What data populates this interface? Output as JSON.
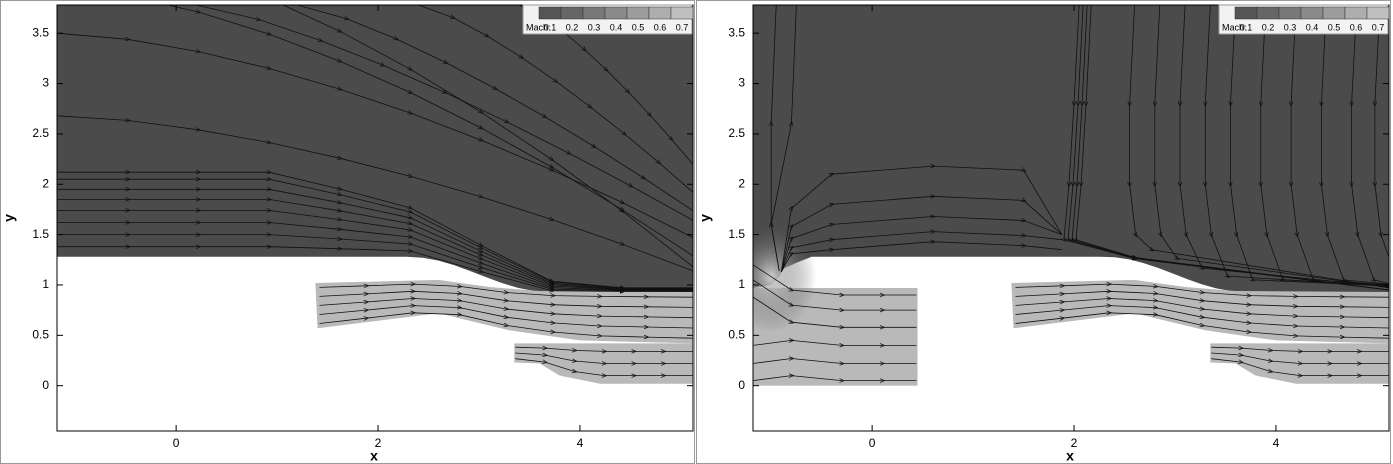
{
  "chart_data": [
    {
      "type": "streamline",
      "xlabel": "x",
      "ylabel": "y",
      "xlim": [
        -1.18,
        5.12
      ],
      "ylim": [
        -0.45,
        3.78
      ],
      "xticks": [
        0,
        2,
        4
      ],
      "yticks": [
        0,
        0.5,
        1,
        1.5,
        2,
        2.5,
        3,
        3.5
      ],
      "colorbar": {
        "label": "Mach:",
        "ticks": [
          0.1,
          0.2,
          0.3,
          0.4,
          0.5,
          0.6,
          0.7
        ],
        "colors": [
          "#555555",
          "#666666",
          "#787878",
          "#8a8a8a",
          "#9c9c9c",
          "#aeaeae",
          "#c0c0c0"
        ]
      }
    },
    {
      "type": "streamline",
      "xlabel": "x",
      "ylabel": "y",
      "xlim": [
        -1.18,
        5.12
      ],
      "ylim": [
        -0.45,
        3.78
      ],
      "xticks": [
        0,
        2,
        4
      ],
      "yticks": [
        0,
        0.5,
        1,
        1.5,
        2,
        2.5,
        3,
        3.5
      ],
      "colorbar": {
        "label": "Mach:",
        "ticks": [
          0.1,
          0.2,
          0.3,
          0.4,
          0.5,
          0.6,
          0.7
        ],
        "colors": [
          "#555555",
          "#666666",
          "#787878",
          "#8a8a8a",
          "#9c9c9c",
          "#aeaeae",
          "#c0c0c0"
        ]
      }
    }
  ]
}
